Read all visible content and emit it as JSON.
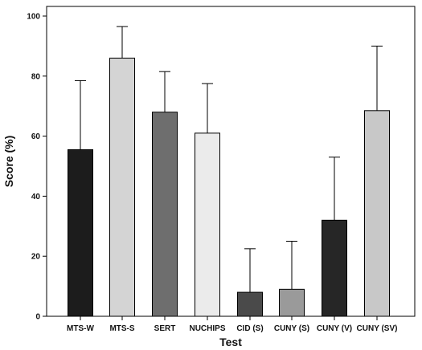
{
  "chart_data": {
    "type": "bar",
    "title": "",
    "xlabel": "Test",
    "ylabel": "Score (%)",
    "ylim": [
      0,
      100
    ],
    "yticks": [
      0,
      20,
      40,
      60,
      80,
      100
    ],
    "categories": [
      "MTS-W",
      "MTS-S",
      "SERT",
      "NUCHIPS",
      "CID (S)",
      "CUNY (S)",
      "CUNY (V)",
      "CUNY (SV)"
    ],
    "series": [
      {
        "values": [
          55.5,
          86,
          68,
          61,
          8,
          9,
          32,
          68.5
        ],
        "error_plus": [
          23,
          10.5,
          13.5,
          16.5,
          14.5,
          16,
          21,
          21.5
        ]
      }
    ],
    "bar_colors": [
      "#1c1c1c",
      "#d4d4d4",
      "#6e6e6e",
      "#ebebeb",
      "#4a4a4a",
      "#9a9a9a",
      "#262626",
      "#c8c8c8"
    ],
    "grid": false,
    "legend": "none"
  }
}
